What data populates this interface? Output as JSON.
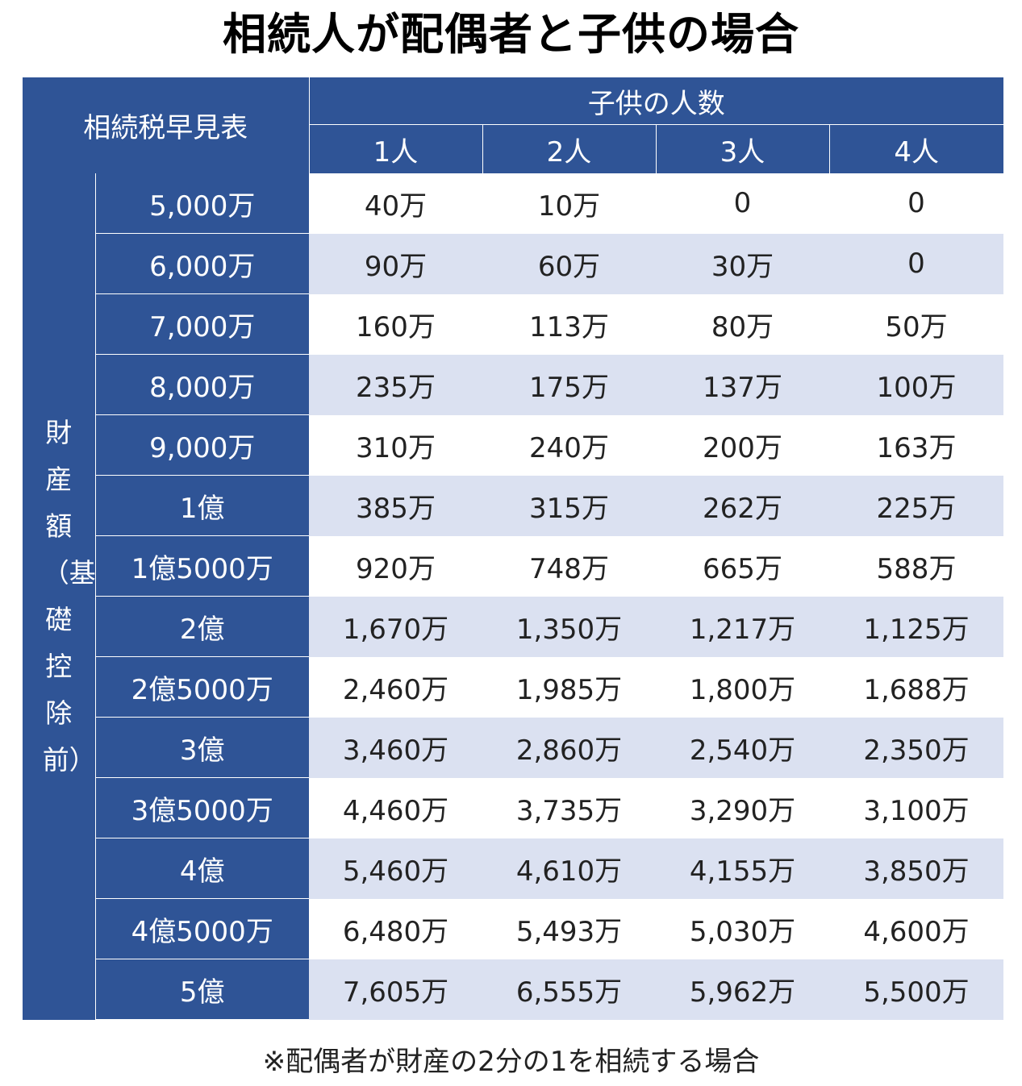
{
  "title": "相続人が配偶者と子供の場合",
  "table": {
    "corner_label": "相続税早見表",
    "group_header": "子供の人数",
    "child_counts": [
      "1人",
      "2人",
      "3人",
      "4人"
    ],
    "side_label": "財産額（基礎控除前）",
    "rows": [
      {
        "label": "5,000万",
        "values": [
          "40万",
          "10万",
          "0",
          "0"
        ]
      },
      {
        "label": "6,000万",
        "values": [
          "90万",
          "60万",
          "30万",
          "0"
        ]
      },
      {
        "label": "7,000万",
        "values": [
          "160万",
          "113万",
          "80万",
          "50万"
        ]
      },
      {
        "label": "8,000万",
        "values": [
          "235万",
          "175万",
          "137万",
          "100万"
        ]
      },
      {
        "label": "9,000万",
        "values": [
          "310万",
          "240万",
          "200万",
          "163万"
        ]
      },
      {
        "label": "1億",
        "values": [
          "385万",
          "315万",
          "262万",
          "225万"
        ]
      },
      {
        "label": "1億5000万",
        "values": [
          "920万",
          "748万",
          "665万",
          "588万"
        ]
      },
      {
        "label": "2億",
        "values": [
          "1,670万",
          "1,350万",
          "1,217万",
          "1,125万"
        ]
      },
      {
        "label": "2億5000万",
        "values": [
          "2,460万",
          "1,985万",
          "1,800万",
          "1,688万"
        ]
      },
      {
        "label": "3億",
        "values": [
          "3,460万",
          "2,860万",
          "2,540万",
          "2,350万"
        ]
      },
      {
        "label": "3億5000万",
        "values": [
          "4,460万",
          "3,735万",
          "3,290万",
          "3,100万"
        ]
      },
      {
        "label": "4億",
        "values": [
          "5,460万",
          "4,610万",
          "4,155万",
          "3,850万"
        ]
      },
      {
        "label": "4億5000万",
        "values": [
          "6,480万",
          "5,493万",
          "5,030万",
          "4,600万"
        ]
      },
      {
        "label": "5億",
        "values": [
          "7,605万",
          "6,555万",
          "5,962万",
          "5,500万"
        ]
      }
    ]
  },
  "note": "※配偶者が財産の2分の1を相続する場合",
  "colors": {
    "header": "#2f5496",
    "stripe": "#dbe1f1"
  }
}
